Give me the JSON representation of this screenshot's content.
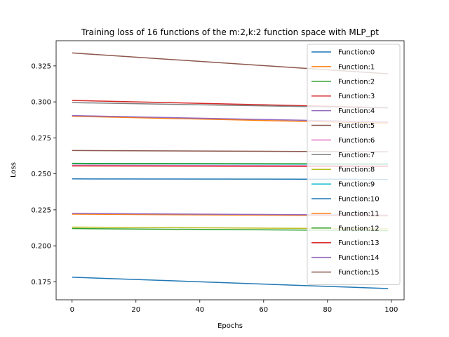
{
  "chart_data": {
    "type": "line",
    "title": "Training loss of 16 functions of the m:2,k:2 function space with MLP_pt",
    "xlabel": "Epochs",
    "ylabel": "Loss",
    "xlim": [
      -5,
      104
    ],
    "ylim": [
      0.1625,
      0.3425
    ],
    "xticks": [
      0,
      20,
      40,
      60,
      80,
      100
    ],
    "xtick_labels": [
      "0",
      "20",
      "40",
      "60",
      "80",
      "100"
    ],
    "yticks": [
      0.175,
      0.2,
      0.225,
      0.25,
      0.275,
      0.3,
      0.325
    ],
    "ytick_labels": [
      "0.175",
      "0.200",
      "0.225",
      "0.250",
      "0.275",
      "0.300",
      "0.325"
    ],
    "grid": false,
    "legend_position": "top-right",
    "series": [
      {
        "name": "Function:0",
        "color": "#1f77b4",
        "x": [
          0,
          99
        ],
        "y": [
          0.1782,
          0.1703
        ]
      },
      {
        "name": "Function:1",
        "color": "#ff7f0e",
        "x": [
          0,
          99
        ],
        "y": [
          0.222,
          0.2208
        ]
      },
      {
        "name": "Function:2",
        "color": "#2ca02c",
        "x": [
          0,
          99
        ],
        "y": [
          0.212,
          0.2105
        ]
      },
      {
        "name": "Function:3",
        "color": "#d62728",
        "x": [
          0,
          99
        ],
        "y": [
          0.301,
          0.296
        ]
      },
      {
        "name": "Function:4",
        "color": "#9467bd",
        "x": [
          0,
          99
        ],
        "y": [
          0.2225,
          0.2213
        ]
      },
      {
        "name": "Function:5",
        "color": "#8c564b",
        "x": [
          0,
          99
        ],
        "y": [
          0.334,
          0.3195
        ]
      },
      {
        "name": "Function:6",
        "color": "#e377c2",
        "x": [
          0,
          99
        ],
        "y": [
          0.256,
          0.2556
        ]
      },
      {
        "name": "Function:7",
        "color": "#7f7f7f",
        "x": [
          0,
          99
        ],
        "y": [
          0.2995,
          0.2958
        ]
      },
      {
        "name": "Function:8",
        "color": "#bcbd22",
        "x": [
          0,
          99
        ],
        "y": [
          0.213,
          0.2118
        ]
      },
      {
        "name": "Function:9",
        "color": "#17becf",
        "x": [
          0,
          99
        ],
        "y": [
          0.257,
          0.2566
        ]
      },
      {
        "name": "Function:10",
        "color": "#1f77b4",
        "x": [
          0,
          99
        ],
        "y": [
          0.2465,
          0.2462
        ]
      },
      {
        "name": "Function:11",
        "color": "#ff7f0e",
        "x": [
          0,
          99
        ],
        "y": [
          0.29,
          0.2852
        ]
      },
      {
        "name": "Function:12",
        "color": "#2ca02c",
        "x": [
          0,
          99
        ],
        "y": [
          0.2573,
          0.2569
        ]
      },
      {
        "name": "Function:13",
        "color": "#d62728",
        "x": [
          0,
          99
        ],
        "y": [
          0.2555,
          0.2551
        ]
      },
      {
        "name": "Function:14",
        "color": "#9467bd",
        "x": [
          0,
          99
        ],
        "y": [
          0.2905,
          0.286
        ]
      },
      {
        "name": "Function:15",
        "color": "#8c564b",
        "x": [
          0,
          99
        ],
        "y": [
          0.2662,
          0.2653
        ]
      }
    ]
  }
}
